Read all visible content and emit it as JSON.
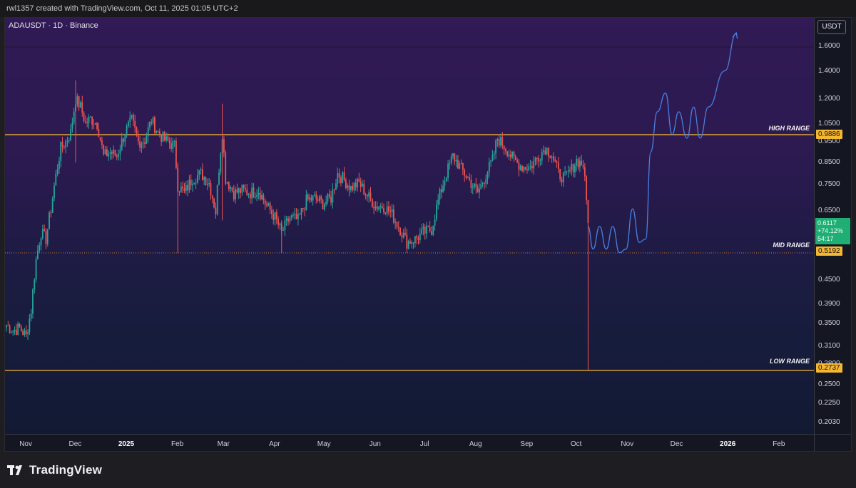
{
  "header": {
    "credit": "rwl1357 created with TradingView.com, Oct 11, 2025 01:05 UTC+2"
  },
  "symbol": {
    "pair": "ADAUSDT",
    "sep1": "·",
    "interval": "1D",
    "sep2": "·",
    "exchange": "Binance"
  },
  "price_axis": {
    "currency": "USDT",
    "ticks": [
      "1.6000",
      "1.4000",
      "1.2000",
      "1.0500",
      "0.9500",
      "0.8500",
      "0.7500",
      "0.6500",
      "0.5500",
      "0.4500",
      "0.3900",
      "0.3500",
      "0.3100",
      "0.2800",
      "0.2500",
      "0.2250",
      "0.2030"
    ]
  },
  "time_axis": {
    "labels": [
      {
        "text": "Nov",
        "bold": false
      },
      {
        "text": "Dec",
        "bold": false
      },
      {
        "text": "2025",
        "bold": true
      },
      {
        "text": "Feb",
        "bold": false
      },
      {
        "text": "Mar",
        "bold": false
      },
      {
        "text": "Apr",
        "bold": false
      },
      {
        "text": "May",
        "bold": false
      },
      {
        "text": "Jun",
        "bold": false
      },
      {
        "text": "Jul",
        "bold": false
      },
      {
        "text": "Aug",
        "bold": false
      },
      {
        "text": "Sep",
        "bold": false
      },
      {
        "text": "Oct",
        "bold": false
      },
      {
        "text": "Nov",
        "bold": false
      },
      {
        "text": "Dec",
        "bold": false
      },
      {
        "text": "2026",
        "bold": true
      },
      {
        "text": "Feb",
        "bold": false
      }
    ]
  },
  "levels": {
    "high": {
      "label": "HIGH RANGE",
      "price": "0.9886",
      "color": "#f5b731"
    },
    "mid": {
      "label": "MID RANGE",
      "price": "0.5192",
      "color": "#f5b731"
    },
    "low": {
      "label": "LOW RANGE",
      "price": "0.2737",
      "color": "#f5b731"
    }
  },
  "current": {
    "price": "0.6117",
    "change": "+74.12%",
    "countdown": "54:17",
    "color": "#1fae74"
  },
  "colors": {
    "up": "#26a69a",
    "down": "#ef5350",
    "projection": "#4a7fe0"
  },
  "footer": {
    "brand": "TradingView"
  },
  "chart_data": {
    "type": "candlestick",
    "title": "ADAUSDT · 1D · Binance",
    "y_unit": "USDT",
    "y_scale": "log",
    "x_range": [
      "2024-10-22",
      "2026-02-28"
    ],
    "notes_levels": [
      0.9886,
      0.5192,
      0.2737
    ],
    "closes": [
      [
        "2024-10-22",
        0.35
      ],
      [
        "2024-10-26",
        0.34
      ],
      [
        "2024-10-30",
        0.345
      ],
      [
        "2024-11-03",
        0.33
      ],
      [
        "2024-11-06",
        0.38
      ],
      [
        "2024-11-09",
        0.5
      ],
      [
        "2024-11-12",
        0.58
      ],
      [
        "2024-11-15",
        0.56
      ],
      [
        "2024-11-18",
        0.66
      ],
      [
        "2024-11-21",
        0.79
      ],
      [
        "2024-11-24",
        0.92
      ],
      [
        "2024-11-27",
        0.95
      ],
      [
        "2024-11-30",
        1.0
      ],
      [
        "2024-12-03",
        1.2
      ],
      [
        "2024-12-06",
        1.15
      ],
      [
        "2024-12-09",
        1.05
      ],
      [
        "2024-12-12",
        1.08
      ],
      [
        "2024-12-16",
        1.05
      ],
      [
        "2024-12-20",
        0.88
      ],
      [
        "2024-12-24",
        0.9
      ],
      [
        "2024-12-28",
        0.88
      ],
      [
        "2025-01-02",
        1.0
      ],
      [
        "2025-01-06",
        1.07
      ],
      [
        "2025-01-10",
        0.95
      ],
      [
        "2025-01-14",
        0.96
      ],
      [
        "2025-01-18",
        1.07
      ],
      [
        "2025-01-22",
        1.0
      ],
      [
        "2025-01-26",
        0.96
      ],
      [
        "2025-02-01",
        0.93
      ],
      [
        "2025-02-03",
        0.75
      ],
      [
        "2025-02-07",
        0.72
      ],
      [
        "2025-02-12",
        0.78
      ],
      [
        "2025-02-17",
        0.8
      ],
      [
        "2025-02-22",
        0.76
      ],
      [
        "2025-02-26",
        0.65
      ],
      [
        "2025-03-02",
        1.0
      ],
      [
        "2025-03-04",
        0.78
      ],
      [
        "2025-03-09",
        0.72
      ],
      [
        "2025-03-14",
        0.73
      ],
      [
        "2025-03-19",
        0.72
      ],
      [
        "2025-03-24",
        0.73
      ],
      [
        "2025-03-29",
        0.67
      ],
      [
        "2025-04-03",
        0.63
      ],
      [
        "2025-04-07",
        0.58
      ],
      [
        "2025-04-12",
        0.63
      ],
      [
        "2025-04-17",
        0.62
      ],
      [
        "2025-04-22",
        0.69
      ],
      [
        "2025-04-27",
        0.7
      ],
      [
        "2025-05-02",
        0.68
      ],
      [
        "2025-05-07",
        0.7
      ],
      [
        "2025-05-11",
        0.8
      ],
      [
        "2025-05-14",
        0.78
      ],
      [
        "2025-05-19",
        0.74
      ],
      [
        "2025-05-24",
        0.76
      ],
      [
        "2025-05-29",
        0.71
      ],
      [
        "2025-06-03",
        0.67
      ],
      [
        "2025-06-08",
        0.67
      ],
      [
        "2025-06-13",
        0.64
      ],
      [
        "2025-06-18",
        0.59
      ],
      [
        "2025-06-22",
        0.55
      ],
      [
        "2025-06-27",
        0.56
      ],
      [
        "2025-07-02",
        0.58
      ],
      [
        "2025-07-07",
        0.59
      ],
      [
        "2025-07-11",
        0.69
      ],
      [
        "2025-07-16",
        0.8
      ],
      [
        "2025-07-20",
        0.88
      ],
      [
        "2025-07-25",
        0.82
      ],
      [
        "2025-07-30",
        0.77
      ],
      [
        "2025-08-04",
        0.72
      ],
      [
        "2025-08-08",
        0.78
      ],
      [
        "2025-08-13",
        0.86
      ],
      [
        "2025-08-16",
        0.97
      ],
      [
        "2025-08-21",
        0.92
      ],
      [
        "2025-08-26",
        0.86
      ],
      [
        "2025-08-31",
        0.83
      ],
      [
        "2025-09-05",
        0.83
      ],
      [
        "2025-09-10",
        0.88
      ],
      [
        "2025-09-14",
        0.92
      ],
      [
        "2025-09-18",
        0.89
      ],
      [
        "2025-09-22",
        0.8
      ],
      [
        "2025-09-26",
        0.78
      ],
      [
        "2025-09-30",
        0.82
      ],
      [
        "2025-10-03",
        0.86
      ],
      [
        "2025-10-07",
        0.84
      ],
      [
        "2025-10-10",
        0.6117
      ]
    ],
    "projection": [
      [
        "2025-10-10",
        0.6
      ],
      [
        "2025-10-13",
        0.53
      ],
      [
        "2025-10-17",
        0.6
      ],
      [
        "2025-10-21",
        0.53
      ],
      [
        "2025-10-25",
        0.6
      ],
      [
        "2025-10-29",
        0.52
      ],
      [
        "2025-11-02",
        0.53
      ],
      [
        "2025-11-06",
        0.66
      ],
      [
        "2025-11-10",
        0.55
      ],
      [
        "2025-11-14",
        0.56
      ],
      [
        "2025-11-17",
        0.9
      ],
      [
        "2025-11-21",
        1.12
      ],
      [
        "2025-11-26",
        1.24
      ],
      [
        "2025-11-30",
        0.99
      ],
      [
        "2025-12-04",
        1.12
      ],
      [
        "2025-12-09",
        0.97
      ],
      [
        "2025-12-13",
        1.15
      ],
      [
        "2025-12-17",
        0.97
      ],
      [
        "2025-12-22",
        1.15
      ],
      [
        "2026-01-01",
        1.4
      ],
      [
        "2026-01-08",
        1.72
      ]
    ]
  }
}
